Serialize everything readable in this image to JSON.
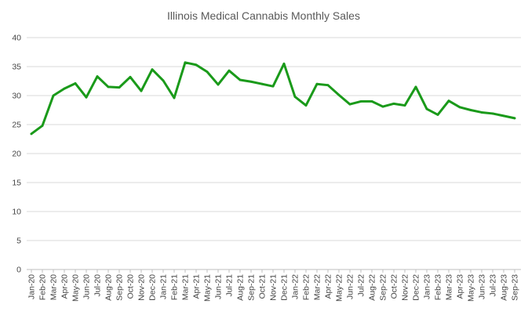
{
  "chart_data": {
    "type": "line",
    "title": "Illinois Medical Cannabis Monthly Sales",
    "xlabel": "",
    "ylabel": "",
    "ylim": [
      0,
      40
    ],
    "yticks": [
      0,
      5,
      10,
      15,
      20,
      25,
      30,
      35,
      40
    ],
    "grid": true,
    "legend": "none",
    "categories": [
      "Jan-20",
      "Feb-20",
      "Mar-20",
      "Apr-20",
      "May-20",
      "Jun-20",
      "Jul-20",
      "Aug-20",
      "Sep-20",
      "Oct-20",
      "Nov-20",
      "Dec-20",
      "Jan-21",
      "Feb-21",
      "Mar-21",
      "Apr-21",
      "May-21",
      "Jun-21",
      "Jul-21",
      "Aug-21",
      "Sep-21",
      "Oct-21",
      "Nov-21",
      "Dec-21",
      "Jan-22",
      "Feb-22",
      "Mar-22",
      "Apr-22",
      "May-22",
      "Jun-22",
      "Jul-22",
      "Aug-22",
      "Sep-22",
      "Oct-22",
      "Nov-22",
      "Dec-22",
      "Jan-23",
      "Feb-23",
      "Mar-23",
      "Apr-23",
      "May-23",
      "Jun-23",
      "Jul-23",
      "Aug-23",
      "Sep-23"
    ],
    "series": [
      {
        "name": "Monthly Sales",
        "color": "#1a9a1a",
        "values": [
          23.4,
          24.8,
          30.0,
          31.2,
          32.1,
          29.7,
          33.3,
          31.5,
          31.4,
          33.2,
          30.8,
          34.5,
          32.6,
          29.6,
          35.7,
          35.3,
          34.1,
          31.9,
          34.3,
          32.7,
          32.4,
          32.0,
          31.6,
          35.5,
          29.8,
          28.3,
          32.0,
          31.8,
          30.1,
          28.5,
          29.0,
          29.0,
          28.1,
          28.6,
          28.3,
          31.5,
          27.7,
          26.7,
          29.1,
          28.0,
          27.5,
          27.1,
          26.9,
          26.5,
          26.1
        ]
      }
    ]
  }
}
